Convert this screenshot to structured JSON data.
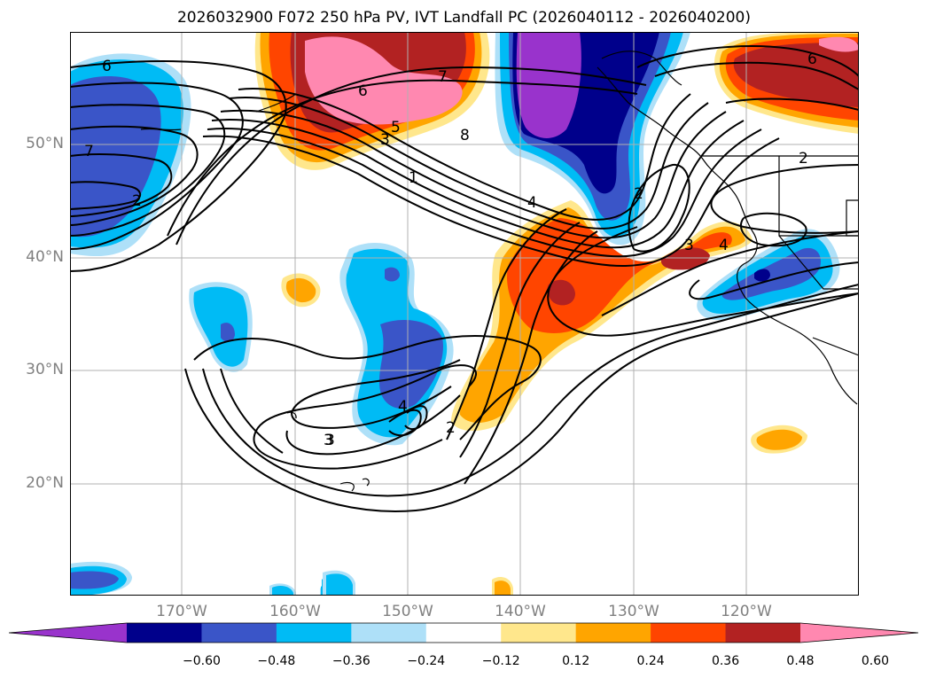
{
  "title": "2026032900 F072 250 hPa PV, IVT Landfall PC (2026040112 - 2026040200)",
  "lat_labels": [
    "50°N",
    "40°N",
    "30°N",
    "20°N"
  ],
  "lon_labels": [
    "170°W",
    "160°W",
    "150°W",
    "140°W",
    "130°W",
    "120°W"
  ],
  "contour_labels": [
    "6",
    "7",
    "2",
    "6",
    "3",
    "5",
    "7",
    "8",
    "1",
    "4",
    "3",
    "4",
    "2",
    "6",
    "2",
    "3",
    "4",
    "3",
    "2"
  ],
  "colorbar": {
    "ticks": [
      "−0.60",
      "−0.48",
      "−0.36",
      "−0.24",
      "−0.12",
      "0.12",
      "0.24",
      "0.36",
      "0.48",
      "0.60"
    ],
    "colors": [
      "#9933cc",
      "#00008b",
      "#3a55c8",
      "#00bbf5",
      "#aee0f8",
      "#ffffff",
      "#ffe78c",
      "#ffa500",
      "#ff4500",
      "#b22222",
      "#ff88b0"
    ]
  },
  "palette": {
    "ocean": "#ffffff",
    "grid": "#b0b0b0",
    "coast": "#000000",
    "label_gray": "#808080"
  }
}
